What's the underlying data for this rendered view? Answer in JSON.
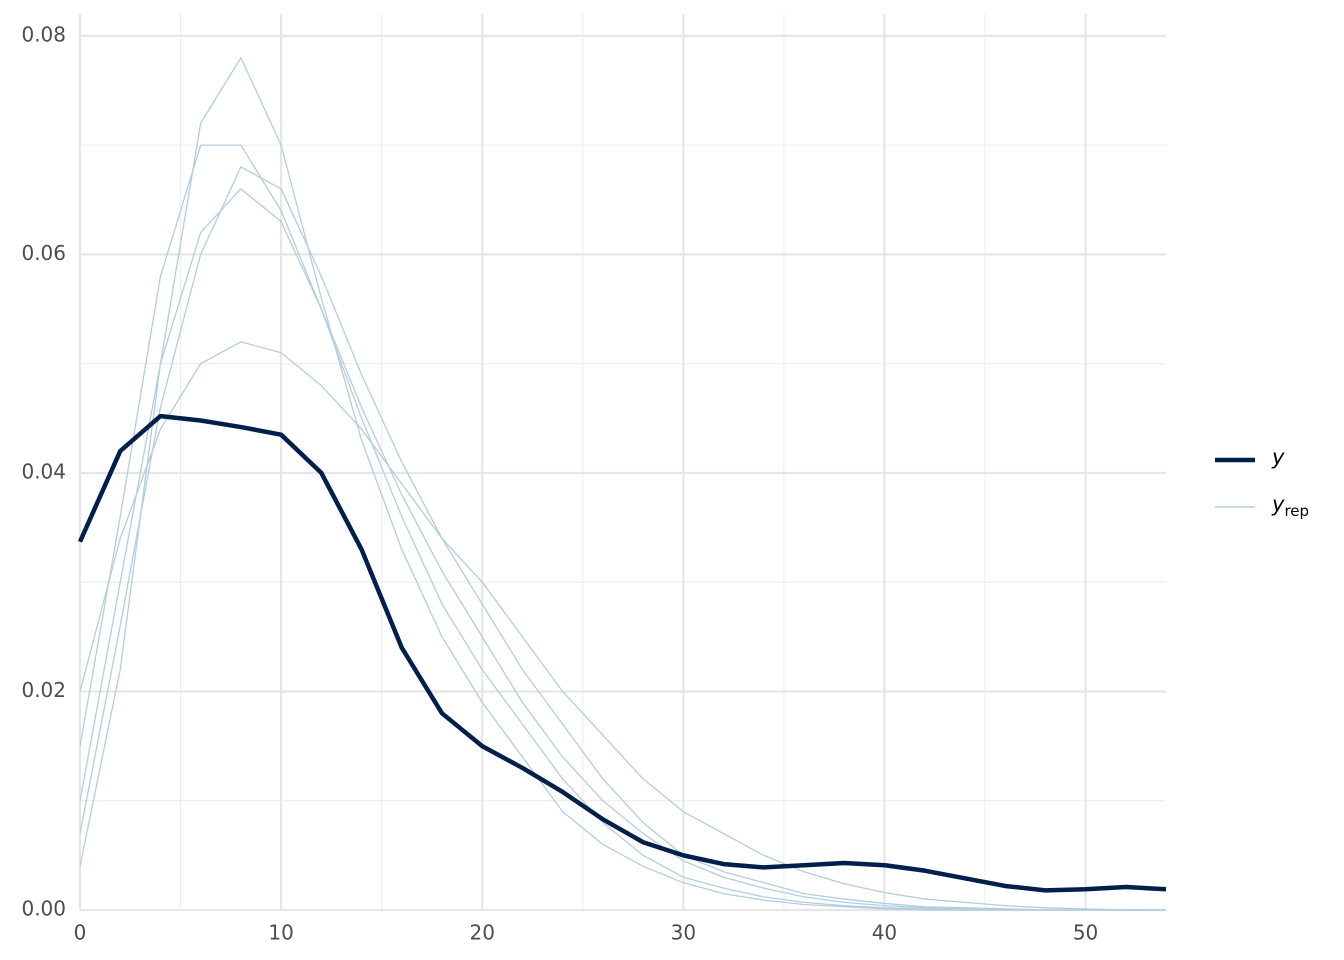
{
  "chart_data": {
    "type": "line",
    "x": [
      0,
      2,
      4,
      6,
      8,
      10,
      12,
      14,
      16,
      18,
      20,
      22,
      24,
      26,
      28,
      30,
      32,
      34,
      36,
      38,
      40,
      42,
      44,
      46,
      48,
      50,
      52,
      54
    ],
    "xlim": [
      0,
      54
    ],
    "xticks": [
      0,
      10,
      20,
      30,
      40,
      50
    ],
    "ylim": [
      0,
      0.082
    ],
    "yticks": [
      {
        "value": 0,
        "label": "0.00"
      },
      {
        "value": 0.02,
        "label": "0.02"
      },
      {
        "value": 0.04,
        "label": "0.04"
      },
      {
        "value": 0.06,
        "label": "0.06"
      },
      {
        "value": 0.08,
        "label": "0.08"
      }
    ],
    "grid": true,
    "legend": "right",
    "series": [
      {
        "name": "y",
        "color": "#011f4b",
        "values": [
          0.0337,
          0.042,
          0.0452,
          0.0448,
          0.0442,
          0.0435,
          0.04,
          0.033,
          0.024,
          0.018,
          0.015,
          0.013,
          0.0108,
          0.0083,
          0.0062,
          0.005,
          0.0042,
          0.0039,
          0.0041,
          0.0043,
          0.0041,
          0.0036,
          0.0029,
          0.0022,
          0.0018,
          0.0019,
          0.0021,
          0.0019
        ]
      },
      {
        "name": "y",
        "name_sub": "rep",
        "color": "#b3cde0",
        "values": [
          [
            0.01,
            0.03,
            0.05,
            0.062,
            0.066,
            0.063,
            0.055,
            0.046,
            0.038,
            0.031,
            0.025,
            0.019,
            0.014,
            0.01,
            0.007,
            0.0045,
            0.003,
            0.002,
            0.0012,
            0.0007,
            0.0004,
            0.0002,
            0.0001,
            0.0001,
            0,
            0,
            0,
            0
          ],
          [
            0.004,
            0.022,
            0.05,
            0.072,
            0.078,
            0.07,
            0.056,
            0.043,
            0.033,
            0.025,
            0.019,
            0.014,
            0.009,
            0.006,
            0.004,
            0.0025,
            0.0015,
            0.0009,
            0.0005,
            0.0003,
            0.0001,
            0,
            0,
            0,
            0,
            0,
            0,
            0
          ],
          [
            0.02,
            0.034,
            0.044,
            0.05,
            0.052,
            0.051,
            0.048,
            0.044,
            0.039,
            0.034,
            0.03,
            0.025,
            0.02,
            0.016,
            0.012,
            0.009,
            0.007,
            0.005,
            0.0035,
            0.0024,
            0.0016,
            0.001,
            0.0007,
            0.0004,
            0.0002,
            0.0001,
            0,
            0
          ],
          [
            0.015,
            0.036,
            0.058,
            0.07,
            0.07,
            0.064,
            0.055,
            0.045,
            0.036,
            0.028,
            0.022,
            0.017,
            0.012,
            0.008,
            0.005,
            0.003,
            0.002,
            0.0012,
            0.0007,
            0.0004,
            0.0002,
            0.0001,
            0,
            0,
            0,
            0,
            0,
            0
          ],
          [
            0.007,
            0.026,
            0.046,
            0.06,
            0.068,
            0.066,
            0.058,
            0.049,
            0.041,
            0.034,
            0.028,
            0.022,
            0.017,
            0.012,
            0.008,
            0.005,
            0.0035,
            0.0025,
            0.0015,
            0.001,
            0.0006,
            0.0003,
            0.0002,
            0.0001,
            0,
            0,
            0,
            0
          ]
        ]
      }
    ]
  }
}
